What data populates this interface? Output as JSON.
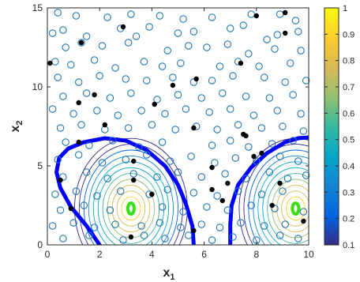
{
  "chart_data": {
    "type": "scatter",
    "title": "",
    "xlabel": "x",
    "xlabel_sub": "1",
    "ylabel": "x",
    "ylabel_sub": "2",
    "xlim": [
      0,
      10
    ],
    "ylim": [
      0,
      15
    ],
    "xticks": [
      "0",
      "2",
      "4",
      "6",
      "8",
      "10"
    ],
    "yticks": [
      "0",
      "5",
      "10",
      "15"
    ],
    "grid": false,
    "colorbar": {
      "range": [
        0.1,
        1
      ],
      "ticks": [
        "0.1",
        "0.2",
        "0.3",
        "0.4",
        "0.5",
        "0.6",
        "0.7",
        "0.8",
        "0.9",
        "1"
      ],
      "colormap": "parula"
    },
    "colors": {
      "open_marker": "#1f77b4",
      "filled_marker": "#000000",
      "boundary": "#0000ff",
      "peak": "#39e01a"
    },
    "open_points": [
      [
        0.4,
        14.7
      ],
      [
        1.1,
        14.5
      ],
      [
        2.3,
        14.4
      ],
      [
        3.2,
        14.6
      ],
      [
        4.3,
        14.5
      ],
      [
        5.2,
        14.3
      ],
      [
        6.3,
        14.4
      ],
      [
        7.8,
        14.6
      ],
      [
        8.9,
        14.6
      ],
      [
        9.5,
        14.2
      ],
      [
        0.2,
        13.4
      ],
      [
        0.6,
        13.6
      ],
      [
        1.5,
        13.2
      ],
      [
        2.8,
        13.7
      ],
      [
        3.4,
        13.2
      ],
      [
        3.9,
        13.8
      ],
      [
        5.0,
        13.4
      ],
      [
        5.6,
        13.5
      ],
      [
        7.0,
        13.7
      ],
      [
        7.5,
        13.9
      ],
      [
        8.4,
        13.0
      ],
      [
        8.8,
        13.3
      ],
      [
        9.6,
        13.5
      ],
      [
        0.7,
        12.5
      ],
      [
        1.3,
        12.8
      ],
      [
        2.1,
        12.6
      ],
      [
        3.1,
        12.8
      ],
      [
        4.6,
        12.3
      ],
      [
        5.4,
        12.6
      ],
      [
        6.1,
        12.5
      ],
      [
        6.9,
        12.7
      ],
      [
        7.7,
        12.1
      ],
      [
        8.7,
        12.4
      ],
      [
        9.7,
        12.3
      ],
      [
        0.3,
        11.6
      ],
      [
        0.9,
        11.4
      ],
      [
        1.8,
        11.7
      ],
      [
        2.6,
        11.2
      ],
      [
        3.7,
        11.6
      ],
      [
        4.4,
        11.3
      ],
      [
        5.1,
        11.5
      ],
      [
        6.6,
        11.3
      ],
      [
        7.3,
        11.6
      ],
      [
        8.1,
        11.3
      ],
      [
        9.3,
        11.5
      ],
      [
        0.4,
        10.6
      ],
      [
        1.2,
        10.3
      ],
      [
        2.0,
        10.7
      ],
      [
        3.0,
        10.5
      ],
      [
        3.8,
        10.4
      ],
      [
        4.8,
        10.6
      ],
      [
        5.6,
        10.3
      ],
      [
        6.3,
        10.4
      ],
      [
        7.1,
        10.7
      ],
      [
        8.3,
        10.6
      ],
      [
        9.1,
        10.3
      ],
      [
        9.9,
        10.4
      ],
      [
        0.6,
        9.4
      ],
      [
        1.5,
        9.6
      ],
      [
        2.4,
        9.3
      ],
      [
        3.2,
        9.6
      ],
      [
        4.2,
        9.2
      ],
      [
        5.0,
        9.5
      ],
      [
        5.9,
        9.3
      ],
      [
        6.7,
        9.6
      ],
      [
        7.6,
        9.4
      ],
      [
        8.5,
        9.3
      ],
      [
        9.4,
        9.5
      ],
      [
        0.2,
        8.6
      ],
      [
        1.0,
        8.3
      ],
      [
        1.9,
        8.5
      ],
      [
        2.7,
        8.2
      ],
      [
        3.6,
        8.5
      ],
      [
        4.5,
        8.3
      ],
      [
        5.3,
        8.6
      ],
      [
        6.2,
        8.4
      ],
      [
        7.0,
        8.6
      ],
      [
        7.9,
        8.2
      ],
      [
        8.8,
        8.5
      ],
      [
        9.7,
        8.3
      ],
      [
        0.5,
        7.4
      ],
      [
        1.3,
        7.6
      ],
      [
        2.2,
        7.3
      ],
      [
        3.1,
        7.4
      ],
      [
        4.0,
        7.6
      ],
      [
        4.9,
        7.3
      ],
      [
        5.7,
        7.5
      ],
      [
        6.5,
        7.3
      ],
      [
        7.3,
        7.6
      ],
      [
        8.2,
        7.4
      ],
      [
        9.0,
        7.5
      ],
      [
        9.8,
        7.2
      ],
      [
        0.7,
        6.5
      ],
      [
        1.6,
        6.3
      ],
      [
        2.5,
        6.6
      ],
      [
        3.5,
        6.2
      ],
      [
        4.4,
        6.5
      ],
      [
        6.3,
        6.3
      ],
      [
        7.0,
        6.6
      ],
      [
        7.7,
        6.2
      ],
      [
        8.6,
        6.4
      ],
      [
        9.4,
        6.6
      ],
      [
        0.4,
        5.4
      ],
      [
        1.2,
        5.7
      ],
      [
        2.1,
        5.2
      ],
      [
        3.0,
        5.4
      ],
      [
        3.8,
        5.7
      ],
      [
        4.7,
        5.3
      ],
      [
        5.5,
        5.6
      ],
      [
        6.4,
        5.2
      ],
      [
        7.2,
        5.5
      ],
      [
        8.0,
        5.3
      ],
      [
        8.9,
        5.6
      ],
      [
        9.6,
        5.3
      ],
      [
        0.6,
        4.3
      ],
      [
        1.5,
        4.6
      ],
      [
        2.3,
        4.2
      ],
      [
        3.3,
        4.5
      ],
      [
        4.2,
        4.3
      ],
      [
        5.0,
        4.6
      ],
      [
        5.9,
        4.3
      ],
      [
        6.8,
        4.5
      ],
      [
        7.6,
        4.2
      ],
      [
        8.5,
        4.6
      ],
      [
        9.2,
        4.2
      ],
      [
        9.9,
        4.4
      ],
      [
        0.3,
        3.2
      ],
      [
        1.1,
        3.4
      ],
      [
        1.9,
        3.1
      ],
      [
        2.8,
        3.4
      ],
      [
        3.9,
        3.2
      ],
      [
        4.6,
        3.5
      ],
      [
        5.6,
        3.3
      ],
      [
        6.5,
        3.1
      ],
      [
        7.3,
        3.4
      ],
      [
        8.2,
        3.2
      ],
      [
        9.0,
        3.4
      ],
      [
        0.5,
        2.2
      ],
      [
        1.4,
        2.5
      ],
      [
        2.4,
        2.2
      ],
      [
        4.4,
        2.4
      ],
      [
        5.2,
        2.1
      ],
      [
        6.1,
        2.4
      ],
      [
        6.9,
        2.2
      ],
      [
        7.8,
        2.5
      ],
      [
        8.7,
        2.3
      ],
      [
        9.8,
        2.1
      ],
      [
        0.2,
        1.2
      ],
      [
        1.0,
        1.4
      ],
      [
        1.8,
        1.1
      ],
      [
        2.6,
        1.3
      ],
      [
        3.6,
        1.2
      ],
      [
        4.3,
        1.4
      ],
      [
        5.1,
        1.1
      ],
      [
        5.9,
        1.3
      ],
      [
        6.6,
        1.1
      ],
      [
        7.4,
        1.4
      ],
      [
        8.3,
        1.2
      ],
      [
        9.1,
        1.3
      ],
      [
        0.6,
        0.4
      ],
      [
        1.6,
        0.6
      ],
      [
        2.9,
        0.3
      ],
      [
        3.7,
        0.6
      ],
      [
        4.5,
        0.4
      ],
      [
        5.4,
        0.6
      ],
      [
        6.3,
        0.3
      ],
      [
        7.1,
        0.5
      ],
      [
        8.0,
        0.3
      ],
      [
        8.9,
        0.6
      ],
      [
        9.6,
        0.4
      ]
    ],
    "filled_points": [
      [
        0.1,
        11.5
      ],
      [
        1.3,
        12.8
      ],
      [
        2.9,
        13.8
      ],
      [
        8.0,
        14.5
      ],
      [
        9.1,
        13.4
      ],
      [
        9.1,
        14.7
      ],
      [
        1.2,
        9.0
      ],
      [
        1.8,
        9.5
      ],
      [
        7.4,
        11.5
      ],
      [
        5.7,
        10.5
      ],
      [
        4.8,
        10.1
      ],
      [
        4.1,
        8.9
      ],
      [
        1.2,
        6.5
      ],
      [
        2.2,
        7.6
      ],
      [
        5.6,
        7.4
      ],
      [
        7.6,
        6.9
      ],
      [
        8.2,
        5.8
      ],
      [
        8.9,
        3.9
      ],
      [
        6.3,
        4.9
      ],
      [
        3.3,
        5.3
      ],
      [
        3.3,
        4.1
      ],
      [
        7.9,
        5.6
      ],
      [
        0.9,
        2.3
      ],
      [
        6.3,
        3.5
      ],
      [
        4.0,
        3.2
      ],
      [
        3.2,
        0.5
      ],
      [
        5.6,
        0.9
      ],
      [
        6.9,
        3.9
      ],
      [
        8.6,
        2.5
      ],
      [
        9.8,
        1.5
      ],
      [
        0.5,
        4.1
      ],
      [
        6.7,
        2.8
      ],
      [
        7.5,
        7.0
      ]
    ],
    "annotations": []
  }
}
